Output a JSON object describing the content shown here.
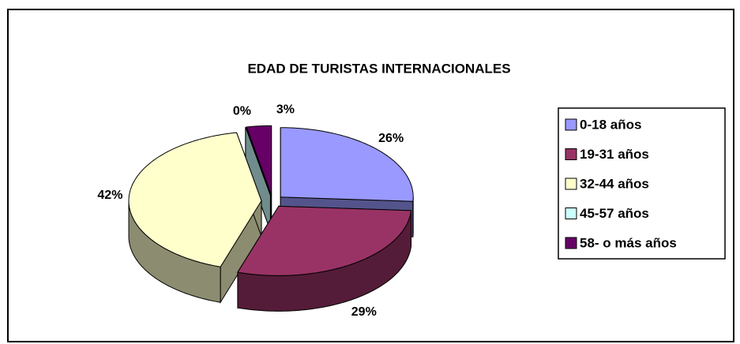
{
  "chart_data": {
    "type": "pie",
    "title": "EDAD DE TURISTAS INTERNACIONALES",
    "categories": [
      "0-18 años",
      "19-31 años",
      "32-44 años",
      "45-57 años",
      "58- o más años"
    ],
    "values": [
      26,
      29,
      42,
      0,
      3
    ],
    "value_labels": [
      "26%",
      "29%",
      "42%",
      "0%",
      "3%"
    ],
    "colors": [
      "#9999ff",
      "#993366",
      "#ffffcc",
      "#ccffff",
      "#660066"
    ],
    "legend": "right"
  }
}
